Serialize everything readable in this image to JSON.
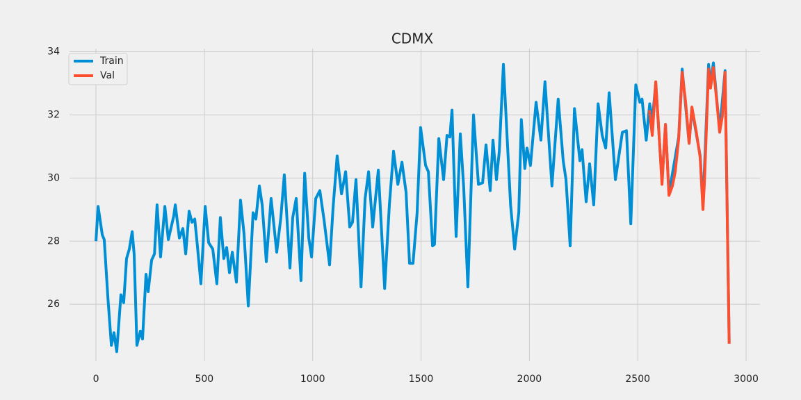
{
  "chart_data": {
    "type": "line",
    "title": "CDMX",
    "xlim": [
      -122,
      3064
    ],
    "ylim": [
      24.2,
      34.1
    ],
    "xticks": [
      0,
      500,
      1000,
      1500,
      2000,
      2500,
      3000
    ],
    "yticks": [
      26,
      28,
      30,
      32,
      34
    ],
    "grid": true,
    "legend": "upper left",
    "series": [
      {
        "name": "Train",
        "color": "#008fd5",
        "x": [
          0,
          10,
          29,
          38,
          55,
          71,
          83,
          96,
          115,
          128,
          141,
          154,
          167,
          176,
          189,
          205,
          215,
          231,
          241,
          257,
          270,
          282,
          298,
          318,
          334,
          359,
          366,
          385,
          401,
          414,
          430,
          443,
          456,
          468,
          484,
          504,
          520,
          539,
          558,
          574,
          590,
          603,
          616,
          629,
          648,
          667,
          683,
          703,
          725,
          738,
          754,
          767,
          786,
          808,
          834,
          853,
          869,
          895,
          908,
          924,
          946,
          963,
          982,
          995,
          1014,
          1033,
          1052,
          1078,
          1094,
          1113,
          1133,
          1152,
          1171,
          1184,
          1200,
          1223,
          1242,
          1258,
          1277,
          1303,
          1332,
          1354,
          1373,
          1393,
          1412,
          1431,
          1447,
          1463,
          1482,
          1498,
          1521,
          1534,
          1553,
          1562,
          1582,
          1604,
          1620,
          1633,
          1643,
          1662,
          1681,
          1697,
          1716,
          1742,
          1765,
          1784,
          1800,
          1819,
          1832,
          1848,
          1861,
          1880,
          1913,
          1932,
          1951,
          1963,
          1979,
          1989,
          2005,
          2031,
          2053,
          2072,
          2104,
          2133,
          2156,
          2169,
          2188,
          2208,
          2233,
          2243,
          2262,
          2278,
          2297,
          2317,
          2336,
          2352,
          2368,
          2397,
          2429,
          2448,
          2468,
          2491,
          2510,
          2520,
          2539,
          2555,
          2567,
          2583,
          2612,
          2628,
          2644,
          2689,
          2705,
          2737,
          2750,
          2788,
          2801,
          2827,
          2836,
          2849,
          2878,
          2903,
          2922
        ],
        "values": [
          28.0,
          29.1,
          28.2,
          28.05,
          26.2,
          24.7,
          25.1,
          24.5,
          26.3,
          26.05,
          27.45,
          27.75,
          28.3,
          27.6,
          24.7,
          25.15,
          24.9,
          26.95,
          26.4,
          27.4,
          27.6,
          29.15,
          27.5,
          29.1,
          28.05,
          28.8,
          29.15,
          28.1,
          28.4,
          27.6,
          28.95,
          28.6,
          28.7,
          27.85,
          26.65,
          29.1,
          27.95,
          27.75,
          26.65,
          28.75,
          27.45,
          27.8,
          27.0,
          27.65,
          26.7,
          29.3,
          28.25,
          25.95,
          28.9,
          28.7,
          29.75,
          29.15,
          27.35,
          29.35,
          27.65,
          28.75,
          30.1,
          27.15,
          28.75,
          29.35,
          26.75,
          30.15,
          28.1,
          27.5,
          29.35,
          29.6,
          28.7,
          27.25,
          29.05,
          30.7,
          29.5,
          30.2,
          28.45,
          28.6,
          29.95,
          26.55,
          29.35,
          30.2,
          28.45,
          30.25,
          26.5,
          29.15,
          30.85,
          29.8,
          30.5,
          29.55,
          27.3,
          27.3,
          28.9,
          31.6,
          30.4,
          30.2,
          27.85,
          27.9,
          31.25,
          29.95,
          31.35,
          31.3,
          32.15,
          28.15,
          31.4,
          29.7,
          26.55,
          32.0,
          29.8,
          29.85,
          31.05,
          29.6,
          31.2,
          29.95,
          30.85,
          33.6,
          29.15,
          27.75,
          28.9,
          31.85,
          30.3,
          30.95,
          30.4,
          32.4,
          31.2,
          33.05,
          29.75,
          32.5,
          30.55,
          29.95,
          27.85,
          32.2,
          30.55,
          30.9,
          29.25,
          30.45,
          29.15,
          32.35,
          31.35,
          30.95,
          32.7,
          29.95,
          31.45,
          31.5,
          28.55,
          32.95,
          32.4,
          32.5,
          31.2,
          32.35,
          31.8,
          33.0,
          29.9,
          31.7,
          29.5,
          31.3,
          33.45,
          31.1,
          32.2,
          30.7,
          29.1,
          33.6,
          33.0,
          33.65,
          31.5,
          33.4,
          24.8
        ]
      },
      {
        "name": "Val",
        "color": "#fc4f30",
        "x": [
          2554,
          2567,
          2583,
          2599,
          2612,
          2628,
          2644,
          2660,
          2673,
          2689,
          2705,
          2721,
          2737,
          2750,
          2769,
          2788,
          2801,
          2808,
          2827,
          2836,
          2849,
          2865,
          2878,
          2890,
          2903,
          2922
        ],
        "values": [
          32.15,
          31.35,
          33.05,
          31.3,
          29.8,
          31.7,
          29.45,
          29.75,
          30.2,
          31.25,
          33.35,
          32.4,
          31.1,
          32.25,
          31.5,
          30.65,
          29.0,
          29.9,
          33.45,
          32.85,
          33.5,
          32.4,
          31.45,
          31.95,
          33.35,
          24.75
        ]
      }
    ]
  }
}
